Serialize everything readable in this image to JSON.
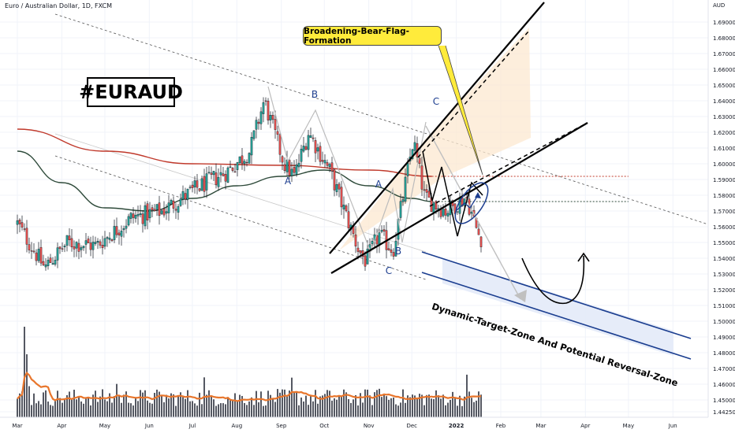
{
  "header": {
    "symbol_title": "Euro / Australian Dollar, 1D, FXCM",
    "currency_unit": "AUD"
  },
  "annotations": {
    "ticker_box": "#EURAUD",
    "callout": "Broadening-Bear-Flag-Formation",
    "zone_label": "Dynamic-Target-Zone And Potential Reversal-Zone",
    "wave_labels": [
      "A",
      "B",
      "C",
      "A",
      "B",
      "C"
    ]
  },
  "colors": {
    "bull": "#26a69a",
    "bear": "#ef5350",
    "candle_outline": "#131722",
    "ma_red": "#c0392b",
    "ma_dark": "#2e4a3a",
    "volume_bar": "#434651",
    "volume_ma": "#e8762c",
    "zone_fill": "#e3eaf8",
    "zone_border": "#1a3d8f",
    "flag_fill": "#fce8d0",
    "callout_bg": "#ffeb3b",
    "wave_label": "#1c3d8f"
  },
  "chart_data": {
    "type": "candlestick",
    "title": "Euro / Australian Dollar, 1D, FXCM",
    "y_axis": {
      "unit": "AUD",
      "ticks": [
        "1.69000",
        "1.68000",
        "1.67000",
        "1.66000",
        "1.65000",
        "1.64000",
        "1.63000",
        "1.62000",
        "1.61000",
        "1.60000",
        "1.59000",
        "1.58000",
        "1.57000",
        "1.56000",
        "1.55000",
        "1.54000",
        "1.53000",
        "1.52000",
        "1.51000",
        "1.50000",
        "1.49000",
        "1.48000",
        "1.47000",
        "1.46000",
        "1.45000",
        "1.44250"
      ],
      "range": [
        1.4425,
        1.69
      ]
    },
    "x_axis": {
      "ticks": [
        "Mar",
        "Apr",
        "May",
        "Jun",
        "Jul",
        "Aug",
        "Sep",
        "Oct",
        "Nov",
        "Dec",
        "2022",
        "Feb",
        "Mar",
        "Apr",
        "May",
        "Jun"
      ]
    },
    "price_path_keypoints": [
      {
        "date": "2021-03-01",
        "price": 1.562
      },
      {
        "date": "2021-03-20",
        "price": 1.534
      },
      {
        "date": "2021-04-05",
        "price": 1.55
      },
      {
        "date": "2021-04-25",
        "price": 1.548
      },
      {
        "date": "2021-05-20",
        "price": 1.566
      },
      {
        "date": "2021-06-10",
        "price": 1.57
      },
      {
        "date": "2021-07-05",
        "price": 1.585
      },
      {
        "date": "2021-07-25",
        "price": 1.595
      },
      {
        "date": "2021-08-10",
        "price": 1.608
      },
      {
        "date": "2021-08-20",
        "price": 1.64
      },
      {
        "date": "2021-09-03",
        "price": 1.6
      },
      {
        "date": "2021-09-10",
        "price": 1.592
      },
      {
        "date": "2021-09-20",
        "price": 1.62
      },
      {
        "date": "2021-10-05",
        "price": 1.595
      },
      {
        "date": "2021-10-25",
        "price": 1.545
      },
      {
        "date": "2021-10-30",
        "price": 1.538
      },
      {
        "date": "2021-11-08",
        "price": 1.555
      },
      {
        "date": "2021-11-18",
        "price": 1.545
      },
      {
        "date": "2021-12-02",
        "price": 1.615
      },
      {
        "date": "2021-12-10",
        "price": 1.578
      },
      {
        "date": "2021-12-25",
        "price": 1.57
      },
      {
        "date": "2022-01-08",
        "price": 1.579
      },
      {
        "date": "2022-01-16",
        "price": 1.556
      },
      {
        "date": "2022-01-19",
        "price": 1.552
      }
    ],
    "moving_averages": [
      {
        "name": "MA1",
        "color": "#c0392b",
        "points": [
          [
            "2021-03-01",
            1.622
          ],
          [
            "2021-05-01",
            1.608
          ],
          [
            "2021-07-01",
            1.6
          ],
          [
            "2021-09-01",
            1.599
          ],
          [
            "2021-11-01",
            1.596
          ],
          [
            "2021-12-15",
            1.592
          ]
        ],
        "projection": {
          "from": "2021-12-15",
          "to": "2022-05-01",
          "price": 1.592
        }
      },
      {
        "name": "MA2",
        "color": "#2e4a3a",
        "points": [
          [
            "2021-03-01",
            1.608
          ],
          [
            "2021-04-01",
            1.588
          ],
          [
            "2021-05-01",
            1.572
          ],
          [
            "2021-06-01",
            1.57
          ],
          [
            "2021-07-01",
            1.578
          ],
          [
            "2021-08-01",
            1.586
          ],
          [
            "2021-09-01",
            1.592
          ],
          [
            "2021-10-01",
            1.596
          ],
          [
            "2021-11-01",
            1.586
          ],
          [
            "2021-12-01",
            1.578
          ],
          [
            "2021-12-15",
            1.576
          ]
        ],
        "projection": {
          "from": "2021-12-15",
          "to": "2022-05-01",
          "price": 1.576
        }
      }
    ],
    "volume": {
      "ma_color": "#e8762c",
      "bar_color": "#434651"
    }
  }
}
